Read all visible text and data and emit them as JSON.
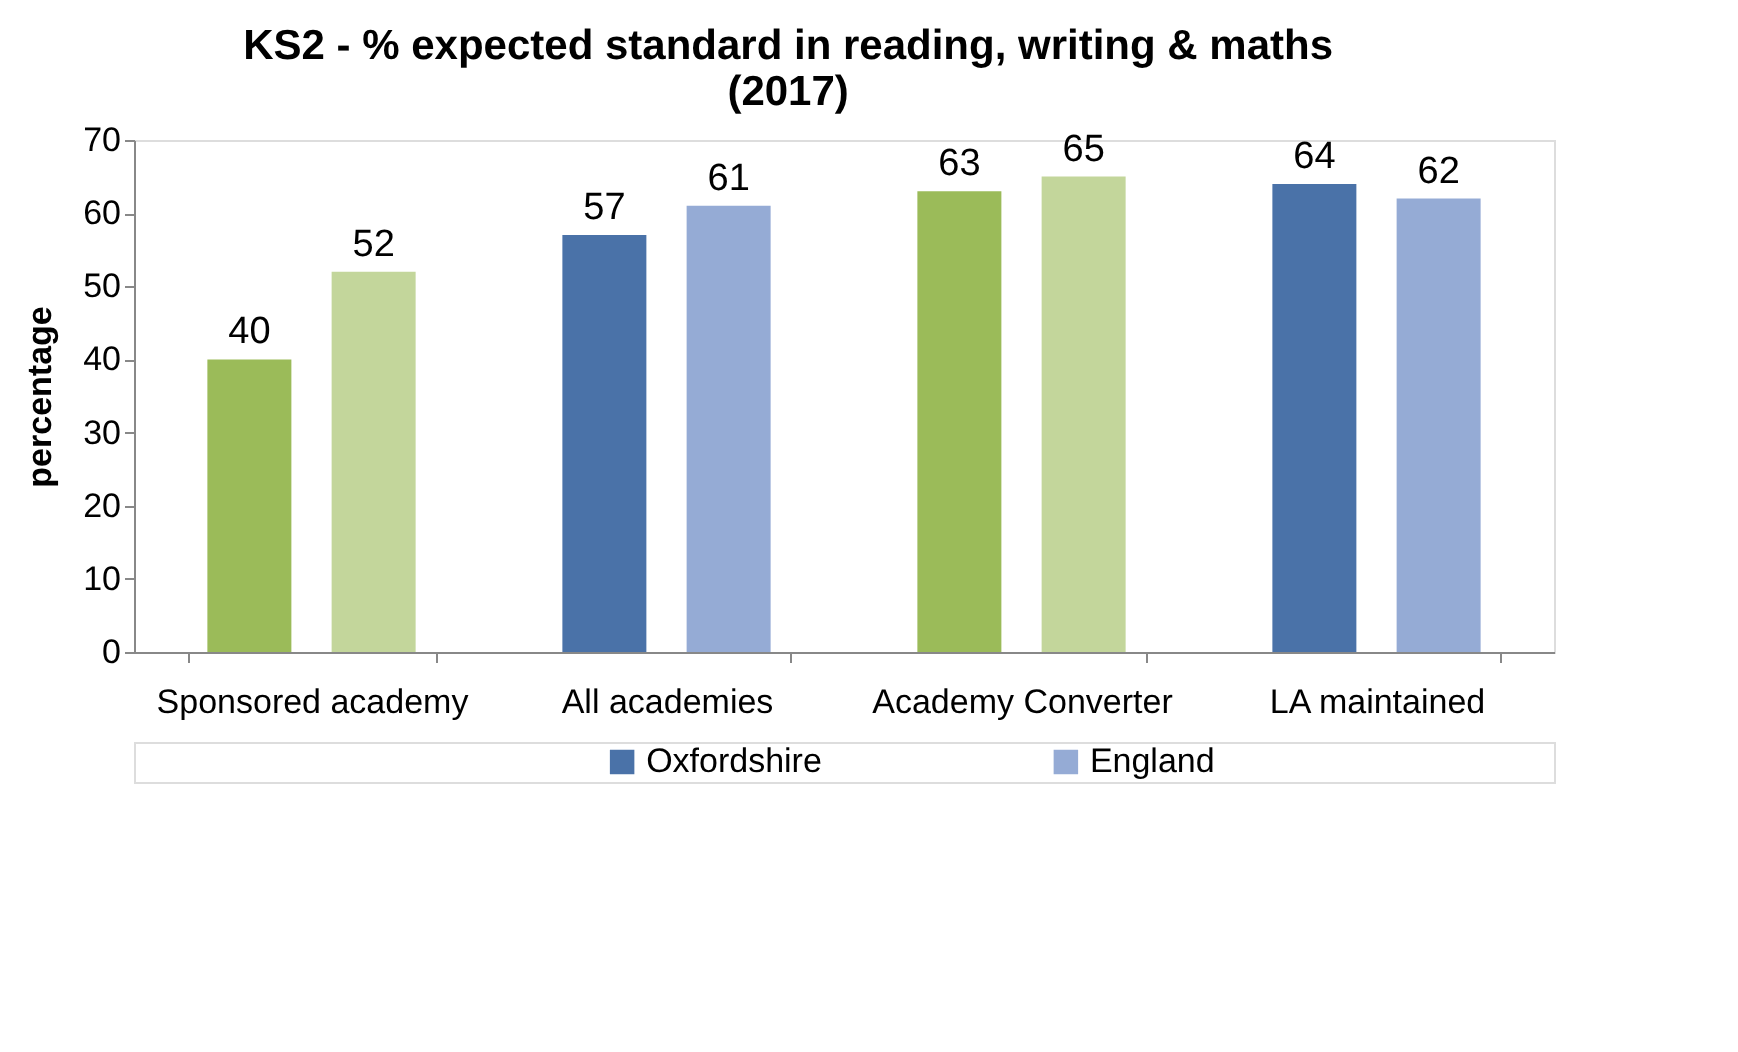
{
  "chart_data": {
    "type": "bar",
    "title": "KS2 - % expected standard in reading, writing & maths (2017)",
    "ylabel": "percentage",
    "categories": [
      "Sponsored academy",
      "All academies",
      "Academy Converter",
      "LA maintained"
    ],
    "series": [
      {
        "name": "Oxfordshire",
        "color": "#4a72a8",
        "colors": [
          "#9bbb59",
          "#4a72a8",
          "#9bbb59",
          "#4a72a8"
        ],
        "values": [
          40,
          57,
          63,
          64
        ]
      },
      {
        "name": "England",
        "color": "#95abd5",
        "colors": [
          "#c3d69b",
          "#95abd5",
          "#c3d69b",
          "#95abd5"
        ],
        "values": [
          52,
          61,
          65,
          62
        ]
      }
    ],
    "ylim": [
      0,
      70
    ],
    "yticks": [
      0,
      10,
      20,
      30,
      40,
      50,
      60,
      70
    ],
    "grid": false,
    "legend": "bottom",
    "data_labels": true
  }
}
